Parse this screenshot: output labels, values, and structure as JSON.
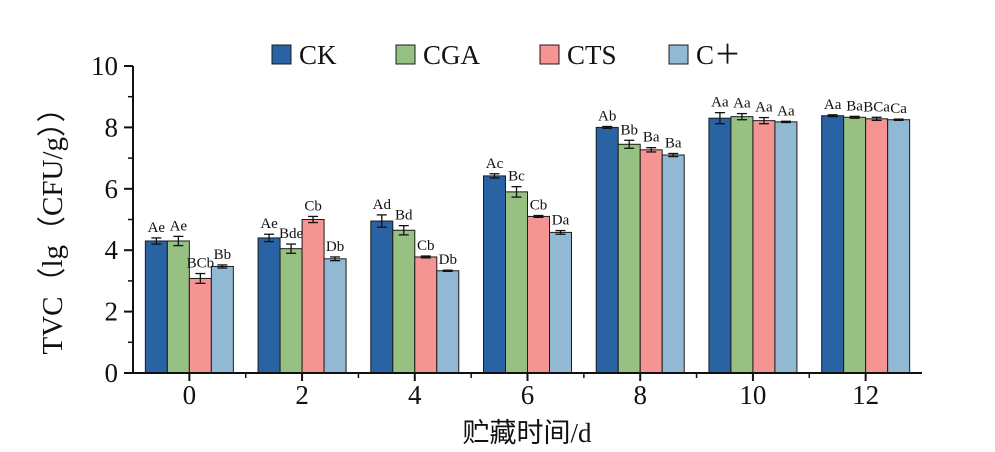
{
  "chart_data": {
    "type": "bar",
    "title": "",
    "xlabel": "贮藏时间/d",
    "ylabel": "TVC（lg（CFU/g））",
    "categories": [
      "0",
      "2",
      "4",
      "6",
      "8",
      "10",
      "12"
    ],
    "ylim": [
      0,
      10
    ],
    "yticks": [
      "0",
      "2",
      "4",
      "6",
      "8",
      "10"
    ],
    "legend_position": "top",
    "series": [
      {
        "name": "CK",
        "color": "#2a63a3",
        "values": [
          4.3,
          4.4,
          4.95,
          6.42,
          8.0,
          8.3,
          8.38
        ],
        "errors": [
          0.1,
          0.12,
          0.2,
          0.07,
          0.03,
          0.18,
          0.03
        ],
        "labels": [
          "Ae",
          "Ae",
          "Ad",
          "Ac",
          "Ab",
          "Aa",
          "Aa"
        ]
      },
      {
        "name": "CGA",
        "color": "#97c182",
        "values": [
          4.3,
          4.05,
          4.65,
          5.9,
          7.45,
          8.35,
          8.33
        ],
        "errors": [
          0.15,
          0.15,
          0.15,
          0.17,
          0.13,
          0.1,
          0.03
        ],
        "labels": [
          "Ae",
          "Bde",
          "Bd",
          "Bc",
          "Bb",
          "Aa",
          "Ba"
        ]
      },
      {
        "name": "CTS",
        "color": "#f49594",
        "values": [
          3.08,
          5.0,
          3.78,
          5.1,
          7.27,
          8.22,
          8.28
        ],
        "errors": [
          0.16,
          0.1,
          0.03,
          0.03,
          0.07,
          0.1,
          0.05
        ],
        "labels": [
          "BCb",
          "Cb",
          "Cb",
          "Cb",
          "Ba",
          "Aa",
          "BCa"
        ]
      },
      {
        "name": "C＋",
        "color": "#92b9d3",
        "values": [
          3.47,
          3.72,
          3.33,
          4.58,
          7.1,
          8.18,
          8.25
        ],
        "errors": [
          0.05,
          0.06,
          0.02,
          0.06,
          0.05,
          0.02,
          0.02
        ],
        "labels": [
          "Bb",
          "Db",
          "Db",
          "Da",
          "Ba",
          "Aa",
          "Ca"
        ]
      }
    ]
  }
}
